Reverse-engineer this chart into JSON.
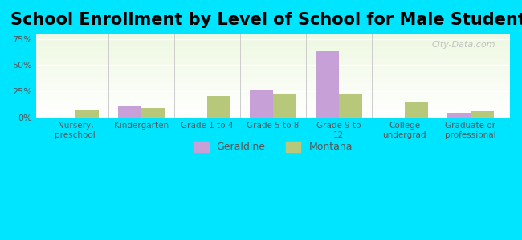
{
  "title": "School Enrollment by Level of School for Male Students",
  "categories": [
    "Nursery,\npreschool",
    "Kindergarten",
    "Grade 1 to 4",
    "Grade 5 to 8",
    "Grade 9 to\n12",
    "College\nundergrad",
    "Graduate or\nprofessional"
  ],
  "geraldine": [
    0,
    11,
    0,
    26,
    63,
    0,
    5
  ],
  "montana": [
    8,
    9,
    21,
    22,
    22,
    15,
    6
  ],
  "geraldine_color": "#c8a0d8",
  "montana_color": "#b8c87a",
  "ylim": [
    0,
    80
  ],
  "yticks": [
    0,
    25,
    50,
    75
  ],
  "ytick_labels": [
    "0%",
    "25%",
    "50%",
    "75%"
  ],
  "bar_width": 0.35,
  "background_color": "#00e5ff",
  "plot_bg_start": "#e8f5e0",
  "plot_bg_end": "#ffffff",
  "title_fontsize": 15,
  "legend_labels": [
    "Geraldine",
    "Montana"
  ],
  "watermark": "City-Data.com"
}
